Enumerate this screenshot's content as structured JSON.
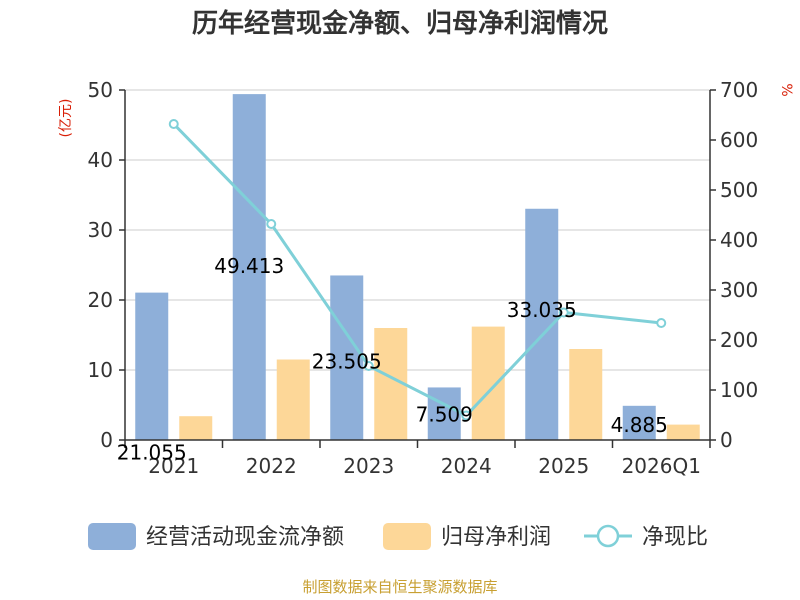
{
  "chart_data": {
    "type": "bar",
    "title": "历年经营现金净额、归母净利润情况",
    "categories": [
      "2021",
      "2022",
      "2023",
      "2024",
      "2025",
      "2026Q1"
    ],
    "y_left": {
      "unit": "(亿元)",
      "min": 0,
      "max": 50,
      "ticks": [
        "0",
        "10",
        "20",
        "30",
        "40",
        "50"
      ]
    },
    "y_right": {
      "unit": "%",
      "min": 0,
      "max": 700,
      "ticks": [
        "0",
        "100",
        "200",
        "300",
        "400",
        "500",
        "600",
        "700"
      ]
    },
    "grid": true,
    "legend_position": "bottom",
    "series": [
      {
        "name": "经营活动现金流净额",
        "kind": "bar",
        "axis": "left",
        "color": "#8eafd9",
        "values": [
          21.055,
          49.413,
          23.505,
          7.509,
          33.035,
          4.885
        ],
        "labels": [
          "21.055",
          "49.413",
          "23.505",
          "7.509",
          "33.035",
          "4.885"
        ]
      },
      {
        "name": "归母净利润",
        "kind": "bar",
        "axis": "left",
        "color": "#fdd798",
        "values": [
          3.4,
          11.5,
          16.0,
          16.2,
          13.0,
          2.2
        ]
      },
      {
        "name": "净现比",
        "kind": "line",
        "axis": "right",
        "color": "#7fd0d8",
        "values": [
          632,
          432,
          148,
          49,
          255,
          234
        ]
      }
    ],
    "source": "制图数据来自恒生聚源数据库"
  }
}
